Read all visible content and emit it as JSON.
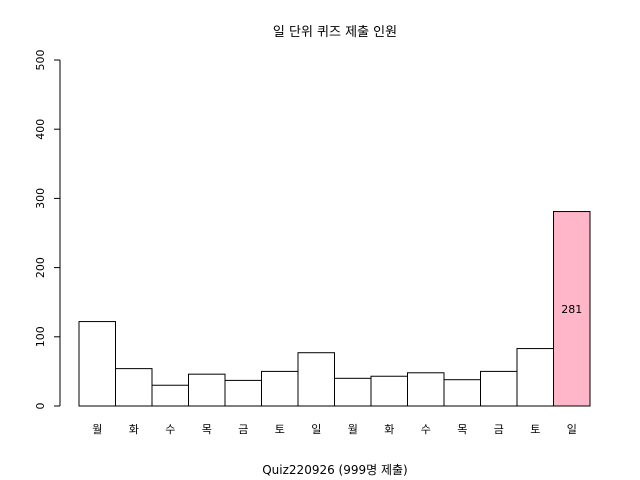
{
  "chart_data": {
    "type": "bar",
    "title": "일 단위 퀴즈 제출 인원",
    "xlabel": "Quiz220926 (999명 제출)",
    "ylabel": "",
    "ylim": [
      0,
      500
    ],
    "yticks": [
      0,
      100,
      200,
      300,
      400,
      500
    ],
    "categories": [
      "월",
      "화",
      "수",
      "목",
      "금",
      "토",
      "일",
      "월",
      "화",
      "수",
      "목",
      "금",
      "토",
      "일"
    ],
    "values": [
      122,
      54,
      30,
      46,
      37,
      50,
      77,
      40,
      43,
      48,
      38,
      50,
      83,
      281
    ],
    "highlight_index": 13,
    "highlight_label": "281",
    "bar_color": "#ffffff",
    "highlight_color": "#ffb6c8",
    "grid": false
  }
}
